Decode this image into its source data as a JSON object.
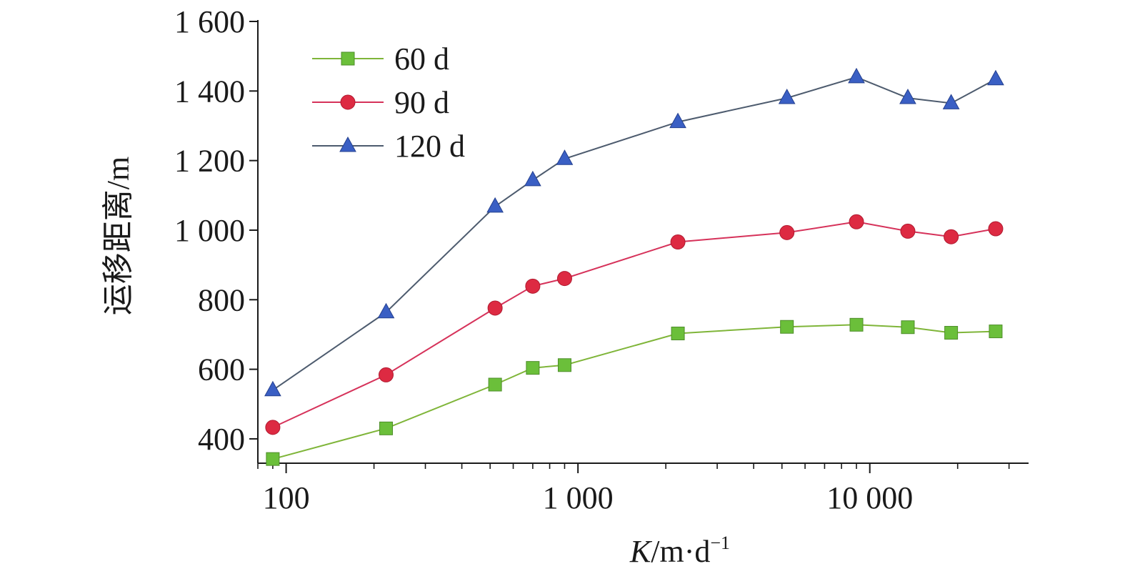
{
  "chart_data": {
    "type": "line",
    "title": "",
    "xlabel": "K/m·d⁻¹",
    "xlabel_italic": "K",
    "xlabel_rest": "/m·d",
    "xlabel_sup": "−1",
    "ylabel": "运移距离/m",
    "xscale": "log",
    "xlim": [
      80,
      35000
    ],
    "ylim": [
      330,
      1600
    ],
    "x": [
      90,
      220,
      520,
      700,
      900,
      2200,
      5200,
      9000,
      13500,
      19000,
      27000
    ],
    "xticks": [
      100,
      1000,
      10000
    ],
    "xtick_labels": [
      "100",
      "1 000",
      "10 000"
    ],
    "yticks": [
      400,
      600,
      800,
      1000,
      1200,
      1400,
      1600
    ],
    "ytick_labels": [
      "400",
      "600",
      "800",
      "1 000",
      "1 200",
      "1 400",
      "1 600"
    ],
    "grid": false,
    "legend_position": "top-left",
    "series": [
      {
        "name": "60 d",
        "color": "#7fb539",
        "marker_color": "#6bbf3a",
        "marker": "square",
        "values": [
          342,
          430,
          556,
          604,
          612,
          703,
          722,
          728,
          721,
          705,
          709
        ]
      },
      {
        "name": "90 d",
        "color": "#d6325a",
        "marker_color": "#dd2a42",
        "marker": "circle",
        "values": [
          433,
          584,
          776,
          839,
          861,
          966,
          993,
          1024,
          997,
          981,
          1004
        ]
      },
      {
        "name": "120 d",
        "color": "#4d5b6e",
        "marker_color": "#3a5fc4",
        "marker": "triangle",
        "values": [
          540,
          764,
          1068,
          1144,
          1205,
          1311,
          1380,
          1440,
          1380,
          1365,
          1434
        ]
      }
    ]
  }
}
